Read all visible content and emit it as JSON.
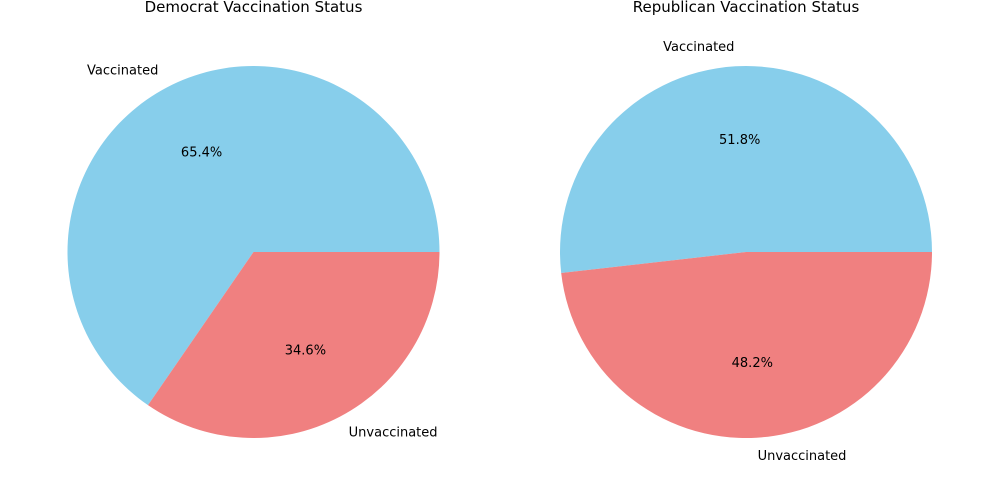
{
  "chart_data": [
    {
      "type": "pie",
      "title": "Democrat Vaccination Status",
      "labels": [
        "Vaccinated",
        "Unvaccinated"
      ],
      "values": [
        65.4,
        34.6
      ],
      "value_labels": [
        "65.4%",
        "34.6%"
      ],
      "colors": [
        "#87CEEB",
        "#F08080"
      ]
    },
    {
      "type": "pie",
      "title": "Republican Vaccination Status",
      "labels": [
        "Vaccinated",
        "Unvaccinated"
      ],
      "values": [
        51.8,
        48.2
      ],
      "value_labels": [
        "51.8%",
        "48.2%"
      ],
      "colors": [
        "#87CEEB",
        "#F08080"
      ]
    }
  ]
}
